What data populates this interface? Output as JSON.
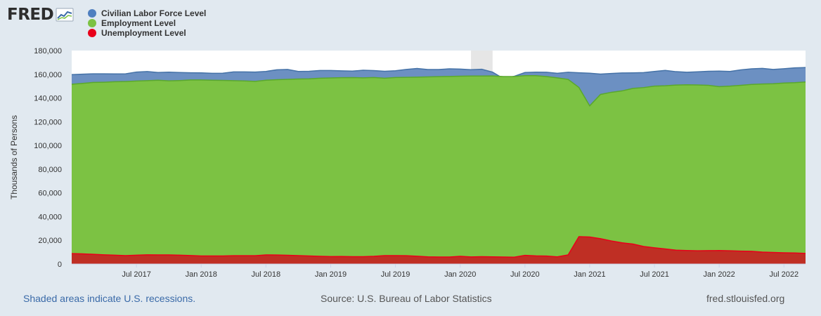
{
  "brand": {
    "name": "FRED"
  },
  "footer": {
    "recession_note": "Shaded areas indicate U.S. recessions.",
    "source": "Source: U.S. Bureau of Labor Statistics",
    "site": "fred.stlouisfed.org"
  },
  "colors": {
    "background": "#e1e9f0",
    "plot": "#ffffff",
    "labor_force": "#6c90c2",
    "labor_force_line": "#4572a7",
    "employment": "#7cc243",
    "employment_line": "#5aa82c",
    "unemployment": "#bf2f24",
    "unemployment_line": "#e8001a",
    "recession": "#e6e6e6"
  },
  "chart_data": {
    "type": "area",
    "xlabel": "",
    "ylabel": "Thousands of Persons",
    "ylim": [
      0,
      180000
    ],
    "yticks": [
      0,
      20000,
      40000,
      60000,
      80000,
      100000,
      120000,
      140000,
      160000,
      180000
    ],
    "ytick_labels": [
      "0",
      "20,000",
      "40,000",
      "60,000",
      "80,000",
      "100,000",
      "120,000",
      "140,000",
      "160,000",
      "180,000"
    ],
    "x_start": "2017-01",
    "x_end": "2022-09",
    "xticks": [
      "2017-07",
      "2018-01",
      "2018-07",
      "2019-01",
      "2019-07",
      "2020-01",
      "2020-07",
      "2021-01",
      "2021-07",
      "2022-01",
      "2022-07"
    ],
    "xtick_labels": [
      "Jul 2017",
      "Jan 2018",
      "Jul 2018",
      "Jan 2019",
      "Jul 2019",
      "Jan 2020",
      "Jul 2020",
      "Jan 2021",
      "Jul 2021",
      "Jan 2022",
      "Jul 2022"
    ],
    "recessions": [
      {
        "start": "2020-02",
        "end": "2020-04"
      }
    ],
    "legend": "top-left",
    "series": [
      {
        "name": "Civilian Labor Force Level",
        "color": "#4572a7",
        "dates": [
          "2017-01",
          "2017-02",
          "2017-03",
          "2017-04",
          "2017-05",
          "2017-06",
          "2017-07",
          "2017-08",
          "2017-09",
          "2017-10",
          "2017-11",
          "2017-12",
          "2018-01",
          "2018-02",
          "2018-03",
          "2018-04",
          "2018-05",
          "2018-06",
          "2018-07",
          "2018-08",
          "2018-09",
          "2018-10",
          "2018-11",
          "2018-12",
          "2019-01",
          "2019-02",
          "2019-03",
          "2019-04",
          "2019-05",
          "2019-06",
          "2019-07",
          "2019-08",
          "2019-09",
          "2019-10",
          "2019-11",
          "2019-12",
          "2020-01",
          "2020-02",
          "2020-03",
          "2020-04",
          "2020-05",
          "2020-06",
          "2020-07",
          "2020-08",
          "2020-09",
          "2020-10",
          "2020-11",
          "2020-12",
          "2021-01",
          "2021-02",
          "2021-03",
          "2021-04",
          "2021-05",
          "2021-06",
          "2021-07",
          "2021-08",
          "2021-09",
          "2021-10",
          "2021-11",
          "2021-12",
          "2022-01",
          "2022-02",
          "2022-03",
          "2022-04",
          "2022-05",
          "2022-06",
          "2022-07",
          "2022-08",
          "2022-09"
        ],
        "values": [
          159700,
          160100,
          160400,
          160400,
          160300,
          160400,
          161900,
          162300,
          161500,
          161800,
          161500,
          161300,
          161200,
          160800,
          160900,
          162000,
          162000,
          161900,
          162400,
          163800,
          164100,
          162400,
          162500,
          163200,
          163200,
          162900,
          162700,
          163400,
          163100,
          162500,
          163000,
          164100,
          164900,
          164000,
          164000,
          164600,
          164400,
          163900,
          164200,
          161800,
          156400,
          158300,
          161500,
          161800,
          161700,
          160800,
          161700,
          161300,
          160900,
          160200,
          160700,
          161100,
          161200,
          161400,
          162400,
          163300,
          162200,
          161700,
          162100,
          162500,
          162700,
          162400,
          163700,
          164600,
          165000,
          164100,
          164700,
          165400,
          165700
        ]
      },
      {
        "name": "Employment Level",
        "color": "#5aa82c",
        "dates": [
          "2017-01",
          "2017-02",
          "2017-03",
          "2017-04",
          "2017-05",
          "2017-06",
          "2017-07",
          "2017-08",
          "2017-09",
          "2017-10",
          "2017-11",
          "2017-12",
          "2018-01",
          "2018-02",
          "2018-03",
          "2018-04",
          "2018-05",
          "2018-06",
          "2018-07",
          "2018-08",
          "2018-09",
          "2018-10",
          "2018-11",
          "2018-12",
          "2019-01",
          "2019-02",
          "2019-03",
          "2019-04",
          "2019-05",
          "2019-06",
          "2019-07",
          "2019-08",
          "2019-09",
          "2019-10",
          "2019-11",
          "2019-12",
          "2020-01",
          "2020-02",
          "2020-03",
          "2020-04",
          "2020-05",
          "2020-06",
          "2020-07",
          "2020-08",
          "2020-09",
          "2020-10",
          "2020-11",
          "2020-12",
          "2021-01",
          "2021-02",
          "2021-03",
          "2021-04",
          "2021-05",
          "2021-06",
          "2021-07",
          "2021-08",
          "2021-09",
          "2021-10",
          "2021-11",
          "2021-12",
          "2022-01",
          "2022-02",
          "2022-03",
          "2022-04",
          "2022-05",
          "2022-06",
          "2022-07",
          "2022-08",
          "2022-09"
        ],
        "values": [
          151600,
          152300,
          153100,
          153300,
          153700,
          153900,
          154300,
          154600,
          155000,
          154500,
          154700,
          155200,
          155200,
          155000,
          154800,
          154600,
          154400,
          154000,
          155000,
          155400,
          155700,
          156000,
          156200,
          156700,
          156900,
          157100,
          157200,
          157000,
          157300,
          156700,
          157300,
          157400,
          157600,
          157800,
          158000,
          158200,
          158400,
          158500,
          158500,
          158600,
          158100,
          158200,
          158800,
          158800,
          158100,
          157000,
          155700,
          148900,
          133400,
          143000,
          144800,
          146000,
          148100,
          148800,
          150000,
          150300,
          150900,
          151100,
          151000,
          150700,
          149600,
          150000,
          150700,
          151400,
          151800,
          152000,
          152600,
          152900,
          153500
        ]
      },
      {
        "name": "Unemployment Level",
        "color": "#e8001a",
        "dates": [
          "2017-01",
          "2017-02",
          "2017-03",
          "2017-04",
          "2017-05",
          "2017-06",
          "2017-07",
          "2017-08",
          "2017-09",
          "2017-10",
          "2017-11",
          "2017-12",
          "2018-01",
          "2018-02",
          "2018-03",
          "2018-04",
          "2018-05",
          "2018-06",
          "2018-07",
          "2018-08",
          "2018-09",
          "2018-10",
          "2018-11",
          "2018-12",
          "2019-01",
          "2019-02",
          "2019-03",
          "2019-04",
          "2019-05",
          "2019-06",
          "2019-07",
          "2019-08",
          "2019-09",
          "2019-10",
          "2019-11",
          "2019-12",
          "2020-01",
          "2020-02",
          "2020-03",
          "2020-04",
          "2020-05",
          "2020-06",
          "2020-07",
          "2020-08",
          "2020-09",
          "2020-10",
          "2020-11",
          "2020-12",
          "2021-01",
          "2021-02",
          "2021-03",
          "2021-04",
          "2021-05",
          "2021-06",
          "2021-07",
          "2021-08",
          "2021-09",
          "2021-10",
          "2021-11",
          "2021-12",
          "2022-01",
          "2022-02",
          "2022-03",
          "2022-04",
          "2022-05",
          "2022-06",
          "2022-07",
          "2022-08",
          "2022-09"
        ],
        "values": [
          8800,
          8600,
          8200,
          7800,
          7500,
          7100,
          7500,
          7800,
          7700,
          7700,
          7500,
          7200,
          6800,
          6800,
          6800,
          7000,
          7000,
          7000,
          7700,
          7600,
          7400,
          7100,
          6800,
          6500,
          6300,
          6400,
          6200,
          6200,
          6500,
          7100,
          7100,
          7000,
          6600,
          6100,
          5900,
          5900,
          6500,
          6000,
          6200,
          6100,
          5900,
          5800,
          7300,
          6900,
          6700,
          6100,
          7700,
          23100,
          22800,
          21400,
          19500,
          17900,
          16900,
          14800,
          13700,
          12700,
          11700,
          11400,
          11200,
          11300,
          11400,
          11200,
          10900,
          10700,
          10100,
          9800,
          9500,
          9300,
          9000
        ]
      }
    ]
  }
}
